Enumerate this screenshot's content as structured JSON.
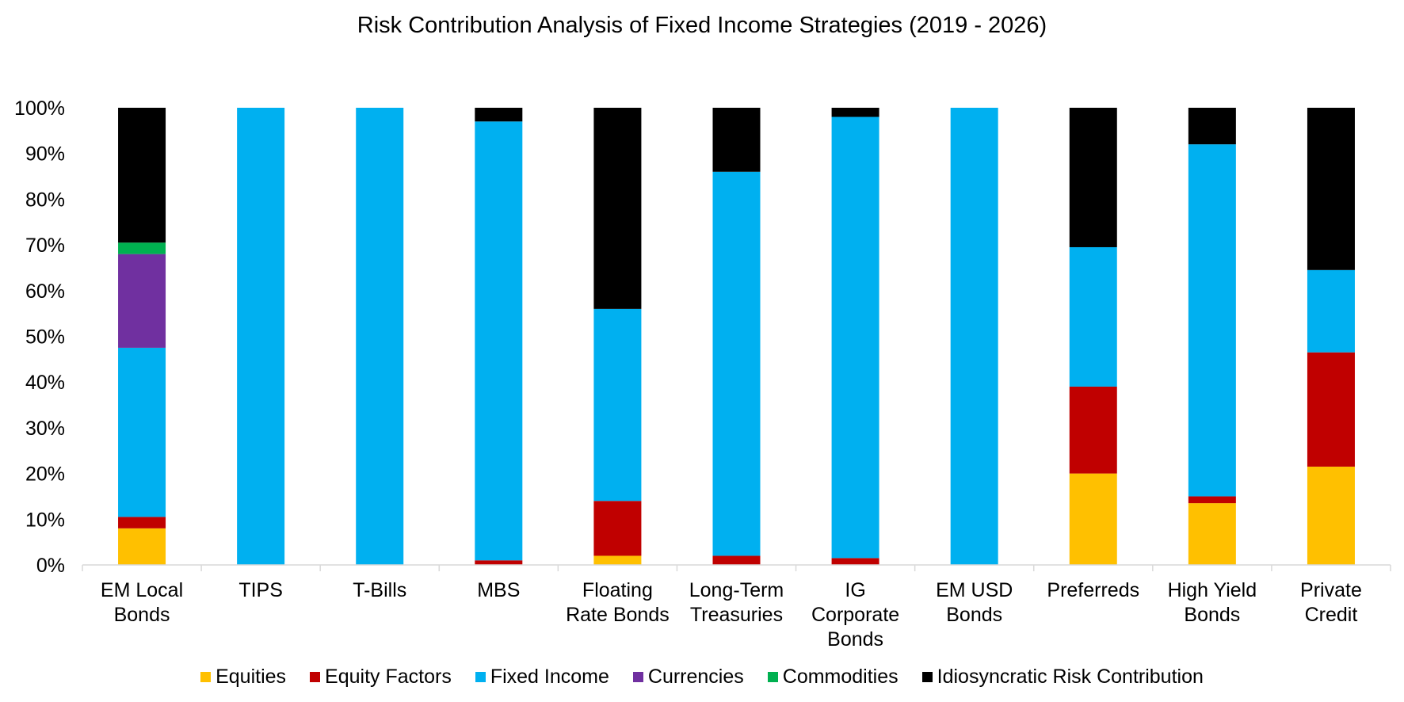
{
  "chart_data": {
    "type": "bar",
    "stacked": true,
    "title": "Risk Contribution Analysis of Fixed Income Strategies (2019 - 2026)",
    "xlabel": "",
    "ylabel": "",
    "ylim": [
      0,
      100
    ],
    "yticks": [
      "0%",
      "10%",
      "20%",
      "30%",
      "40%",
      "50%",
      "60%",
      "70%",
      "80%",
      "90%",
      "100%"
    ],
    "grid": false,
    "legend_position": "bottom",
    "categories": [
      [
        "EM Local",
        "Bonds"
      ],
      [
        "TIPS"
      ],
      [
        "T-Bills"
      ],
      [
        "MBS"
      ],
      [
        "Floating",
        "Rate Bonds"
      ],
      [
        "Long-Term",
        "Treasuries"
      ],
      [
        "IG",
        "Corporate",
        "Bonds"
      ],
      [
        "EM USD",
        "Bonds"
      ],
      [
        "Preferreds"
      ],
      [
        "High Yield",
        "Bonds"
      ],
      [
        "Private",
        "Credit"
      ]
    ],
    "series": [
      {
        "name": "Equities",
        "color": "#FFC000",
        "values": [
          8,
          0,
          0,
          0,
          2,
          0,
          0,
          0,
          20,
          13.5,
          21.5
        ]
      },
      {
        "name": "Equity Factors",
        "color": "#C00000",
        "values": [
          2.5,
          0,
          0,
          1,
          12,
          2,
          1.5,
          0,
          19,
          1.5,
          25
        ]
      },
      {
        "name": "Fixed Income",
        "color": "#00B0F0",
        "values": [
          37,
          100,
          100,
          96,
          42,
          84,
          96.5,
          100,
          30.5,
          77,
          18
        ]
      },
      {
        "name": "Currencies",
        "color": "#7030A0",
        "values": [
          20.5,
          0,
          0,
          0,
          0,
          0,
          0,
          0,
          0,
          0,
          0
        ]
      },
      {
        "name": "Commodities",
        "color": "#00B050",
        "values": [
          2.5,
          0,
          0,
          0,
          0,
          0,
          0,
          0,
          0,
          0,
          0
        ]
      },
      {
        "name": "Idiosyncratic Risk Contribution",
        "color": "#000000",
        "values": [
          29.5,
          0,
          0,
          3,
          44,
          14,
          2,
          0,
          30.5,
          8,
          35.5
        ]
      }
    ]
  }
}
